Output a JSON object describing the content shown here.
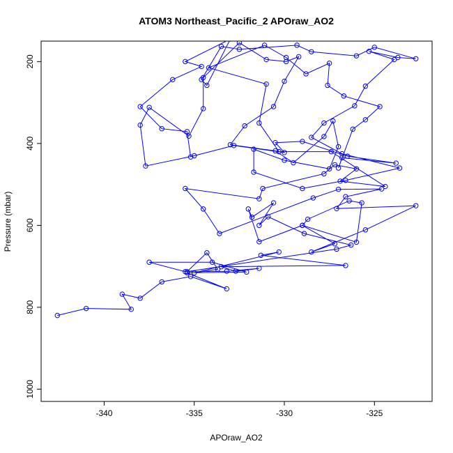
{
  "chart_data": {
    "type": "scatter",
    "title": "ATOM3 Northeast_Pacific_2 APOraw_AO2",
    "xlabel": "APOraw_AO2",
    "ylabel": "Pressure (mbar)",
    "xlim": [
      -343.5,
      -321.8
    ],
    "ylim": [
      1030,
      150
    ],
    "y_reversed": true,
    "x_ticks": [
      -340,
      -335,
      -330,
      -325
    ],
    "y_ticks": [
      200,
      400,
      600,
      800,
      1000
    ],
    "grid": false,
    "legend": "none",
    "line_color": "#0000ff",
    "marker": "open-circle",
    "series": [
      {
        "points": [
          [
            -342.6,
            820
          ],
          [
            -341.0,
            803
          ],
          [
            -338.5,
            805
          ],
          [
            -339.0,
            768
          ],
          [
            -338.0,
            778
          ],
          [
            -336.8,
            738
          ],
          [
            -335.2,
            725
          ],
          [
            -333.2,
            755
          ],
          [
            -335.4,
            716
          ],
          [
            -332.1,
            714
          ],
          [
            -334.0,
            690
          ],
          [
            -337.5,
            690
          ],
          [
            -335.5,
            713
          ],
          [
            -333.2,
            712
          ],
          [
            -331.4,
            705
          ],
          [
            -332.7,
            712
          ],
          [
            -333.5,
            701
          ],
          [
            -326.6,
            698
          ],
          [
            -331.3,
            673
          ],
          [
            -330.3,
            665
          ],
          [
            -335.0,
            716
          ],
          [
            -333.7,
            707
          ],
          [
            -334.3,
            667
          ],
          [
            -335.4,
            713
          ],
          [
            -327.1,
            658
          ],
          [
            -326.3,
            648
          ],
          [
            -328.9,
            620
          ],
          [
            -330.9,
            579
          ],
          [
            -331.4,
            600
          ],
          [
            -330.6,
            545
          ],
          [
            -331.8,
            580
          ],
          [
            -332.0,
            560
          ],
          [
            -331.4,
            640
          ],
          [
            -329.0,
            600
          ],
          [
            -328.7,
            585
          ],
          [
            -326.4,
            540
          ],
          [
            -325.7,
            545
          ],
          [
            -326.0,
            641
          ],
          [
            -329.0,
            600
          ],
          [
            -327.2,
            645
          ],
          [
            -328.5,
            665
          ],
          [
            -325.5,
            611
          ],
          [
            -322.7,
            552
          ],
          [
            -327.1,
            559
          ],
          [
            -326.6,
            530
          ],
          [
            -324.6,
            511
          ],
          [
            -327.0,
            512
          ],
          [
            -328.4,
            533
          ],
          [
            -333.6,
            620
          ],
          [
            -334.5,
            560
          ],
          [
            -335.5,
            510
          ],
          [
            -331.4,
            535
          ],
          [
            -331.2,
            510
          ],
          [
            -327.8,
            474
          ],
          [
            -327.2,
            452
          ],
          [
            -326.0,
            462
          ],
          [
            -326.9,
            492
          ],
          [
            -324.4,
            505
          ],
          [
            -327.4,
            420
          ],
          [
            -330.3,
            420
          ],
          [
            -331.4,
            350
          ],
          [
            -331.0,
            255
          ],
          [
            -334.2,
            215
          ],
          [
            -331.1,
            160
          ],
          [
            -329.9,
            190
          ],
          [
            -328.8,
            230
          ],
          [
            -327.5,
            204
          ],
          [
            -327.6,
            258
          ],
          [
            -326.7,
            284
          ],
          [
            -324.7,
            310
          ],
          [
            -325.5,
            342
          ],
          [
            -326.2,
            365
          ],
          [
            -327.0,
            460
          ],
          [
            -326.8,
            435
          ],
          [
            -323.8,
            448
          ],
          [
            -326.5,
            431
          ],
          [
            -329.0,
            395
          ],
          [
            -330.5,
            398
          ],
          [
            -330.0,
            422
          ],
          [
            -332.8,
            405
          ],
          [
            -335.0,
            430
          ],
          [
            -337.7,
            455
          ],
          [
            -338.0,
            355
          ],
          [
            -337.5,
            312
          ],
          [
            -335.3,
            382
          ],
          [
            -334.5,
            315
          ],
          [
            -334.5,
            239
          ],
          [
            -332.5,
            154
          ],
          [
            -331.0,
            195
          ],
          [
            -329.9,
            200
          ],
          [
            -329.2,
            188
          ],
          [
            -330.0,
            248
          ],
          [
            -330.6,
            310
          ],
          [
            -332.2,
            357
          ],
          [
            -333.0,
            403
          ],
          [
            -330.5,
            418
          ],
          [
            -329.5,
            447
          ],
          [
            -327.8,
            383
          ],
          [
            -327.3,
            345
          ],
          [
            -327.0,
            408
          ],
          [
            -327.5,
            462
          ],
          [
            -330.0,
            441
          ],
          [
            -331.7,
            414
          ],
          [
            -331.7,
            470
          ],
          [
            -329.0,
            510
          ],
          [
            -326.6,
            490
          ],
          [
            -323.6,
            460
          ],
          [
            -326.8,
            425
          ],
          [
            -328.5,
            385
          ],
          [
            -327.8,
            350
          ],
          [
            -326.1,
            308
          ],
          [
            -325.5,
            260
          ],
          [
            -323.9,
            195
          ],
          [
            -325.3,
            175
          ],
          [
            -323.7,
            190
          ],
          [
            -322.7,
            193
          ],
          [
            -325.0,
            165
          ],
          [
            -326.0,
            186
          ],
          [
            -328.5,
            176
          ],
          [
            -329.3,
            160
          ],
          [
            -332.5,
            170
          ],
          [
            -333.5,
            163
          ],
          [
            -334.6,
            244
          ],
          [
            -334.3,
            258
          ],
          [
            -333.0,
            145
          ],
          [
            -335.5,
            200
          ],
          [
            -334.6,
            212
          ],
          [
            -336.2,
            244
          ],
          [
            -338.0,
            310
          ],
          [
            -336.8,
            364
          ],
          [
            -335.4,
            371
          ],
          [
            -335.2,
            433
          ]
        ]
      }
    ]
  }
}
